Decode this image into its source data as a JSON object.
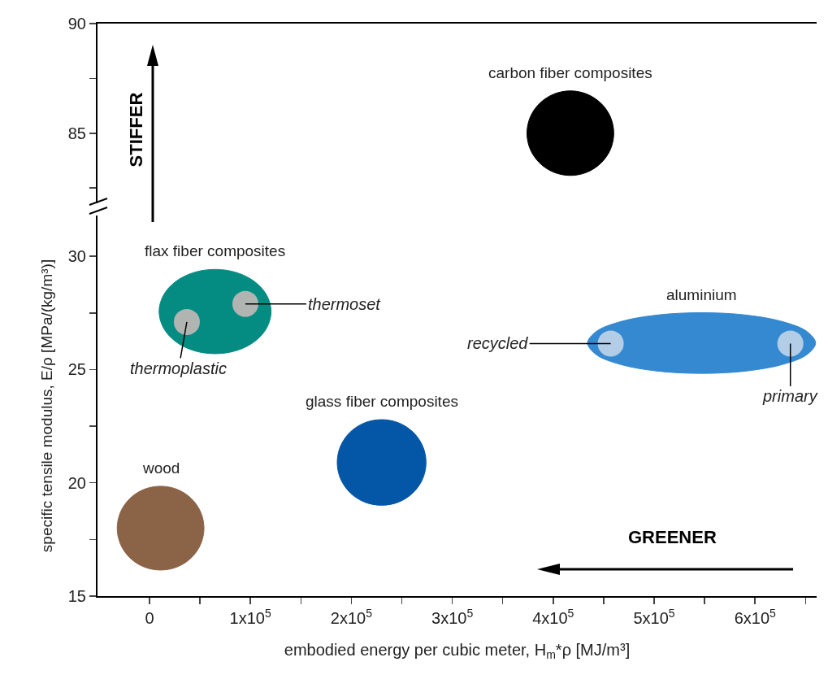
{
  "chart_data": [
    {
      "type": "area",
      "xlim": [
        -51500,
        661000
      ],
      "ylim": [
        81.8,
        90
      ],
      "yticks": [
        {
          "value": 82.5,
          "label": null
        },
        85,
        {
          "value": 87.5,
          "label": null
        },
        90
      ],
      "tick_labels": "y",
      "legend": false,
      "series": [
        {
          "name": "carbon fiber composites",
          "color": "#000000",
          "x": [
            460000,
            456700,
            447400,
            433500,
            417000,
            400500,
            386600,
            377300,
            374000,
            377300,
            386600,
            400500,
            417000,
            433500,
            447400,
            456700,
            460000
          ],
          "values": [
            85,
            85.74,
            86.36,
            86.78,
            86.93,
            86.78,
            86.36,
            85.74,
            85,
            84.26,
            83.64,
            83.22,
            83.07,
            83.22,
            83.64,
            84.26,
            85
          ]
        }
      ],
      "annotations": [
        "STIFFER"
      ]
    },
    {
      "type": "area",
      "xlabel": "embodied energy per cubic meter, H$_{m}$*ρ [MJ/m³]",
      "ylabel": "specific tensile modulus, E/ρ [MPa/(kg/m³)]",
      "xlim": [
        -51500,
        661000
      ],
      "ylim": [
        15,
        31.8
      ],
      "xticks": [
        0,
        {
          "value": 50000,
          "label": null
        },
        {
          "value": 100000,
          "label": "1x10$^{5}$"
        },
        {
          "value": 150000,
          "label": null
        },
        {
          "value": 200000,
          "label": "2x10$^{5}$"
        },
        {
          "value": 250000,
          "label": null
        },
        {
          "value": 300000,
          "label": "3x10$^{5}$"
        },
        {
          "value": 350000,
          "label": null
        },
        {
          "value": 400000,
          "label": "4x10$^{5}$"
        },
        {
          "value": 450000,
          "label": null
        },
        {
          "value": 500000,
          "label": "5x10$^{5}$"
        },
        {
          "value": 550000,
          "label": null
        },
        {
          "value": 600000,
          "label": "6x10$^{5}$"
        },
        {
          "value": 650000,
          "label": null
        }
      ],
      "yticks": [
        15,
        {
          "value": 17.5,
          "label": null
        },
        20,
        {
          "value": 22.5,
          "label": null
        },
        25,
        {
          "value": 27.5,
          "label": null
        },
        30
      ],
      "legend": false,
      "series": [
        {
          "name": "flax fiber composites",
          "color": "#058c82",
          "x": [
            120500,
            116300,
            104200,
            86300,
            65000,
            43700,
            25800,
            13700,
            9500,
            13700,
            25800,
            43700,
            65000,
            86300,
            104200,
            116300,
            120500
          ],
          "values": [
            27.56,
            28.27,
            28.88,
            29.28,
            29.42,
            29.28,
            28.88,
            28.27,
            27.56,
            26.85,
            26.24,
            25.84,
            25.7,
            25.84,
            26.24,
            26.85,
            27.56
          ]
        },
        {
          "name": "aluminium",
          "color": "#3589d0",
          "x": [
            660000,
            651400,
            626900,
            590300,
            547000,
            503700,
            467100,
            442600,
            434000,
            442600,
            467100,
            503700,
            547000,
            590300,
            626900,
            651400,
            660000
          ],
          "values": [
            26.17,
            26.68,
            27.12,
            27.41,
            27.51,
            27.41,
            27.12,
            26.68,
            26.17,
            25.66,
            25.22,
            24.93,
            24.83,
            24.93,
            25.22,
            25.66,
            26.17
          ]
        },
        {
          "name": "glass fiber composites",
          "color": "#0457a6",
          "x": [
            274000,
            270700,
            261100,
            246800,
            230000,
            213200,
            198900,
            189300,
            186000,
            189300,
            198900,
            213200,
            230000,
            246800,
            261100,
            270700,
            274000
          ],
          "values": [
            20.9,
            21.62,
            22.24,
            22.65,
            22.79,
            22.65,
            22.24,
            21.62,
            20.9,
            20.18,
            19.56,
            19.15,
            19.01,
            19.15,
            19.56,
            20.18,
            20.9
          ]
        },
        {
          "name": "wood",
          "color": "#8b6347",
          "x": [
            54000,
            50700,
            41400,
            27500,
            11000,
            -5500,
            -19400,
            -28700,
            -32000,
            -28700,
            -19400,
            -5500,
            11000,
            27500,
            41400,
            50700,
            54000
          ],
          "values": [
            18,
            18.71,
            19.31,
            19.71,
            19.85,
            19.71,
            19.31,
            18.71,
            18,
            17.29,
            16.69,
            16.29,
            16.15,
            16.29,
            16.69,
            17.29,
            18
          ]
        },
        {
          "type": "scatter",
          "marker": "circle",
          "colors": [
            "#b0b5b2",
            "#b0b5b2",
            "#b3cde6",
            "#b3cde6"
          ],
          "x": [
            95000,
            37000,
            457000,
            635000
          ],
          "values": [
            27.9,
            27.1,
            26.15,
            26.15
          ]
        }
      ],
      "annotations": [
        "GREENER",
        {
          "text": "thermoset",
          "x": 95000,
          "y": 27.9
        },
        {
          "text": "thermoplastic",
          "x": 37000,
          "y": 27.1
        },
        {
          "text": "recycled",
          "x": 457000,
          "y": 26.15
        },
        {
          "text": "primary",
          "x": 635000,
          "y": 26.15
        }
      ]
    }
  ]
}
